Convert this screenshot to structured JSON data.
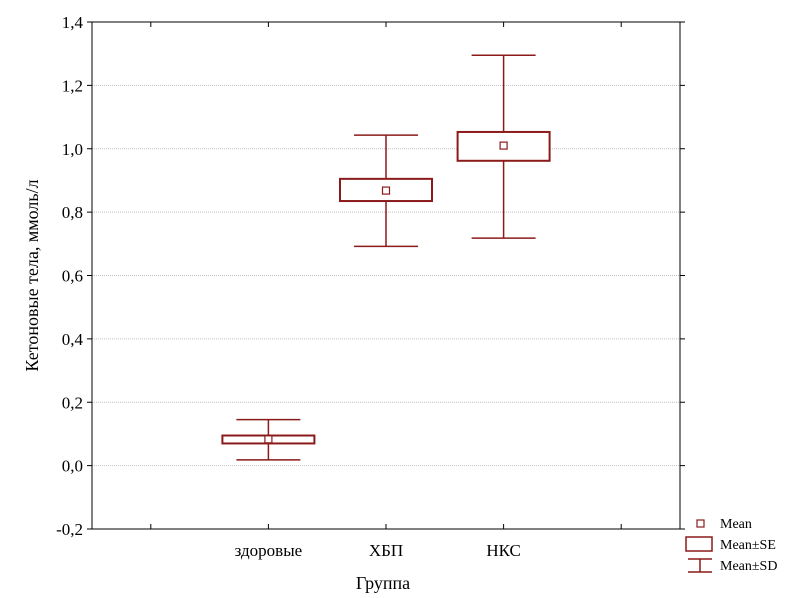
{
  "chart_data": {
    "type": "box",
    "xlabel": "Группа",
    "ylabel": "Кетоновые тела, ммоль/л",
    "ylim": [
      -0.2,
      1.4
    ],
    "y_ticks": [
      -0.2,
      0.0,
      0.2,
      0.4,
      0.6,
      0.8,
      1.0,
      1.2,
      1.4
    ],
    "y_tick_labels": [
      "-0,2",
      "0,0",
      "0,2",
      "0,4",
      "0,6",
      "0,8",
      "1,0",
      "1,2",
      "1,4"
    ],
    "categories": [
      "здоровые",
      "ХБП",
      "НКС"
    ],
    "grid": true,
    "color": "#8B1A1A",
    "groups": [
      {
        "name": "здоровые",
        "mean": 0.083,
        "se_low": 0.07,
        "se_high": 0.095,
        "sd_low": 0.018,
        "sd_high": 0.145
      },
      {
        "name": "ХБП",
        "mean": 0.868,
        "se_low": 0.835,
        "se_high": 0.905,
        "sd_low": 0.692,
        "sd_high": 1.043
      },
      {
        "name": "НКС",
        "mean": 1.01,
        "se_low": 0.962,
        "se_high": 1.053,
        "sd_low": 0.718,
        "sd_high": 1.295
      }
    ],
    "legend": [
      {
        "key": "mean",
        "label": "Mean"
      },
      {
        "key": "se",
        "label": "Mean±SE"
      },
      {
        "key": "sd",
        "label": "Mean±SD"
      }
    ],
    "legend_position": "bottom-right"
  }
}
